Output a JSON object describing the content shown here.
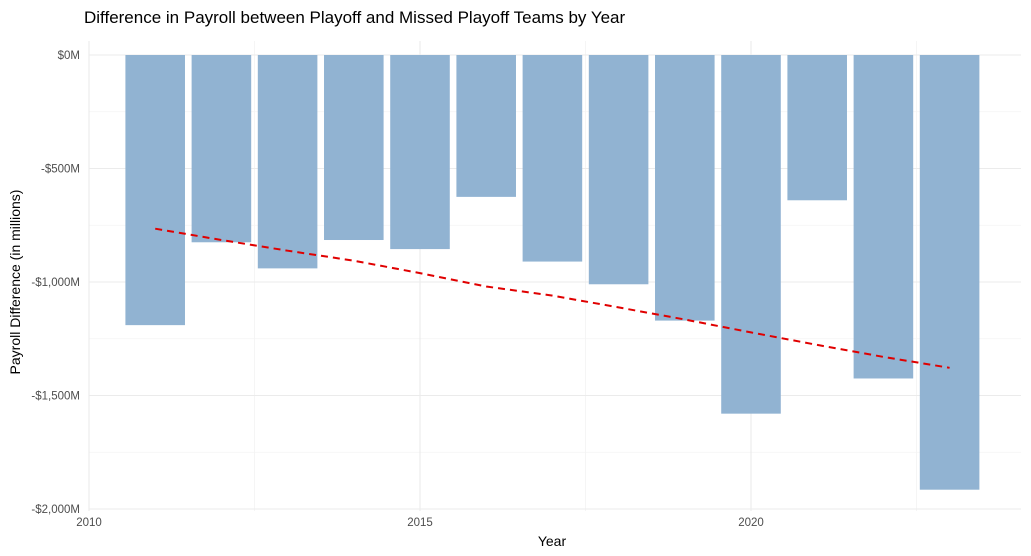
{
  "chart_data": {
    "type": "bar",
    "title": "Difference in Payroll between Playoff and Missed Playoff Teams by Year",
    "xlabel": "Year",
    "ylabel": "Payroll Difference (in millions)",
    "xlim": [
      2010,
      2023.8
    ],
    "ylim": [
      -2000,
      0
    ],
    "x_ticks": [
      2010,
      2015,
      2020
    ],
    "x_tick_labels": [
      "2010",
      "2015",
      "2020"
    ],
    "y_ticks": [
      0,
      -500,
      -1000,
      -1500,
      -2000
    ],
    "y_tick_labels": [
      "$0M",
      "-$500M",
      "-$1,000M",
      "-$1,500M",
      "-$2,000M"
    ],
    "grid": true,
    "legend": "none",
    "bar_color": "#91b3d2",
    "trend_color": "#e00000",
    "series": [
      {
        "type": "bar",
        "x": [
          2011,
          2012,
          2013,
          2014,
          2015,
          2016,
          2017,
          2018,
          2019,
          2020,
          2021,
          2022,
          2023
        ],
        "values": [
          -1190,
          -825,
          -940,
          -815,
          -855,
          -625,
          -910,
          -1010,
          -1170,
          -1580,
          -640,
          -1425,
          -1915
        ]
      },
      {
        "type": "line",
        "style": "dashed",
        "x": [
          2011,
          2012,
          2013,
          2014,
          2015,
          2016,
          2017,
          2018,
          2019,
          2020,
          2021,
          2022,
          2023
        ],
        "values": [
          -765,
          -815,
          -862,
          -906,
          -961,
          -1020,
          -1060,
          -1112,
          -1165,
          -1222,
          -1277,
          -1330,
          -1378
        ]
      }
    ]
  }
}
